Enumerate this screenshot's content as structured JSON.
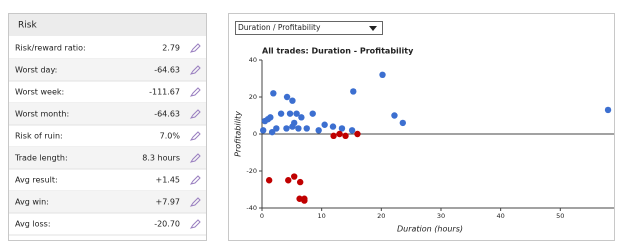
{
  "panel": {
    "title": "Risk",
    "rows": [
      {
        "label": "Risk/reward ratio:",
        "value": "2.79"
      },
      {
        "label": "Worst day:",
        "value": "-64.63"
      },
      {
        "label": "Worst week:",
        "value": "-111.67"
      },
      {
        "label": "Worst month:",
        "value": "-64.63"
      },
      {
        "label": "Risk of ruin:",
        "value": "7.0%"
      },
      {
        "label": "Trade length:",
        "value": "8.3 hours"
      },
      {
        "label": "Avg result:",
        "value": "+1.45",
        "color": "#2a8a2a"
      },
      {
        "label": "Avg win:",
        "value": "+7.97",
        "color": "#2a8a2a"
      },
      {
        "label": "Avg loss:",
        "value": "-20.70",
        "color": "#cc2222"
      }
    ]
  },
  "selector": "Duration / Profitability",
  "chart_data": {
    "type": "scatter",
    "title": "All trades: Duration - Profitability",
    "x_label": "Duration (hours)",
    "y_label": "Profitability",
    "xlim": [
      0,
      59
    ],
    "xticks": [
      0,
      10,
      20,
      30,
      40,
      50
    ],
    "ylim": [
      -40,
      40
    ],
    "yticks": [
      -40,
      -20,
      0,
      20,
      40
    ],
    "series": [
      {
        "color": "#3c6fd0",
        "x": [
          0.2,
          0.5,
          1,
          1.4,
          1.9,
          1.7,
          2.4,
          3.2,
          4.2,
          4.7,
          5.1,
          5.4,
          4.1,
          5.1,
          6.1,
          5.8,
          6.6,
          7.5,
          8.5,
          9.5,
          10.5,
          11.9,
          13.4,
          15.3,
          15.1,
          20.2,
          22.2,
          23.6,
          58
        ],
        "values": [
          2,
          7,
          8,
          9,
          22,
          1,
          3,
          11,
          20,
          11,
          18,
          6,
          3,
          4,
          3,
          11,
          9,
          3,
          11,
          2,
          5,
          4,
          3,
          23,
          2,
          32,
          10,
          6,
          13
        ]
      },
      {
        "color": "#c00000",
        "x": [
          1.2,
          4.4,
          5.4,
          6.4,
          6.3,
          7.1,
          7.1,
          13,
          14,
          16,
          12
        ],
        "values": [
          -25,
          -25,
          -23,
          -26,
          -35,
          -35,
          -36,
          0,
          -1,
          0,
          -1
        ]
      }
    ]
  }
}
